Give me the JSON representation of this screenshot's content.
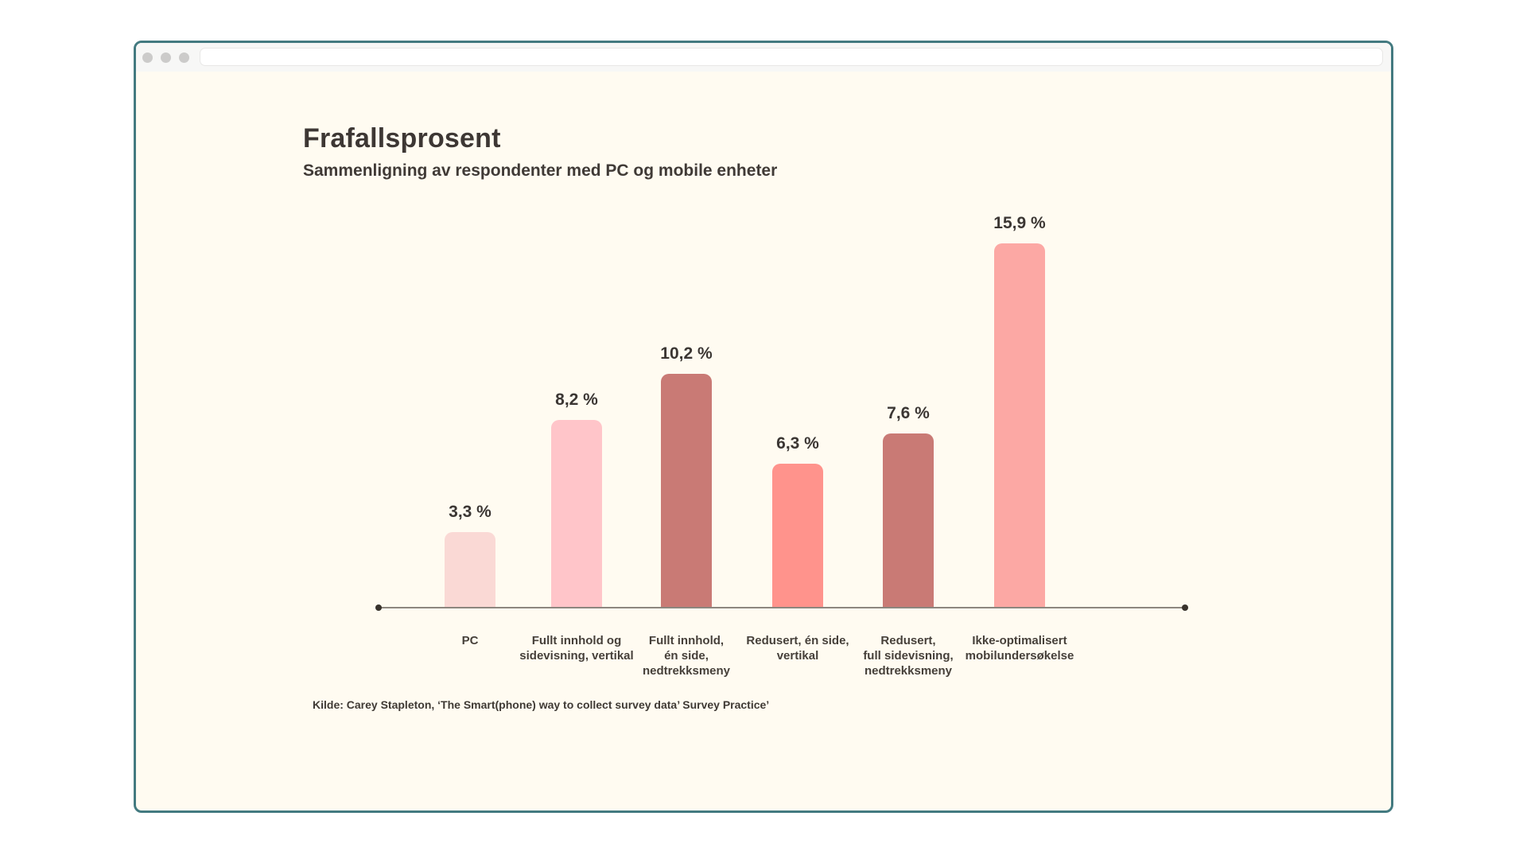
{
  "browser": {
    "address_value": "",
    "address_placeholder": ""
  },
  "chart_data": {
    "type": "bar",
    "title": "Frafallsprosent",
    "subtitle": "Sammenligning av respondenter med PC og mobile enheter",
    "source": "Kilde: Carey Stapleton, ‘The Smart(phone) way to collect survey data’ Survey Practice’",
    "categories": [
      "PC",
      "Fullt innhold og sidevisning, vertikal",
      "Fullt innhold, én side, nedtrekksmeny",
      "Redusert, én side, vertikal",
      "Redusert, full sidevisning, nedtrekksmeny",
      "Ikke-optimalisert mobilundersøkelse"
    ],
    "label_lines": [
      [
        "PC"
      ],
      [
        "Fullt innhold og",
        "sidevisning, vertikal"
      ],
      [
        "Fullt innhold,",
        "én side,",
        "nedtrekksmeny"
      ],
      [
        "Redusert, én side,",
        "vertikal"
      ],
      [
        "Redusert,",
        "full sidevisning,",
        "nedtrekksmeny"
      ],
      [
        "Ikke-optimalisert",
        "mobilundersøkelse"
      ]
    ],
    "values": [
      3.3,
      8.2,
      10.2,
      6.3,
      7.6,
      15.9
    ],
    "value_labels": [
      "3,3 %",
      "8,2 %",
      "10,2 %",
      "6,3 %",
      "7,6 %",
      "15,9 %"
    ],
    "bar_colors": [
      "#FAD9D5",
      "#FFC5C9",
      "#C97A75",
      "#FF938C",
      "#C97A75",
      "#FCA8A4"
    ],
    "unit": "%",
    "ylim": [
      0,
      15.9
    ],
    "grid": false,
    "legend": "none",
    "colors": {
      "background": "#FFFBF1",
      "window_border": "#437A80",
      "axis_line": "#8C867F",
      "text": "#3D3734"
    }
  }
}
